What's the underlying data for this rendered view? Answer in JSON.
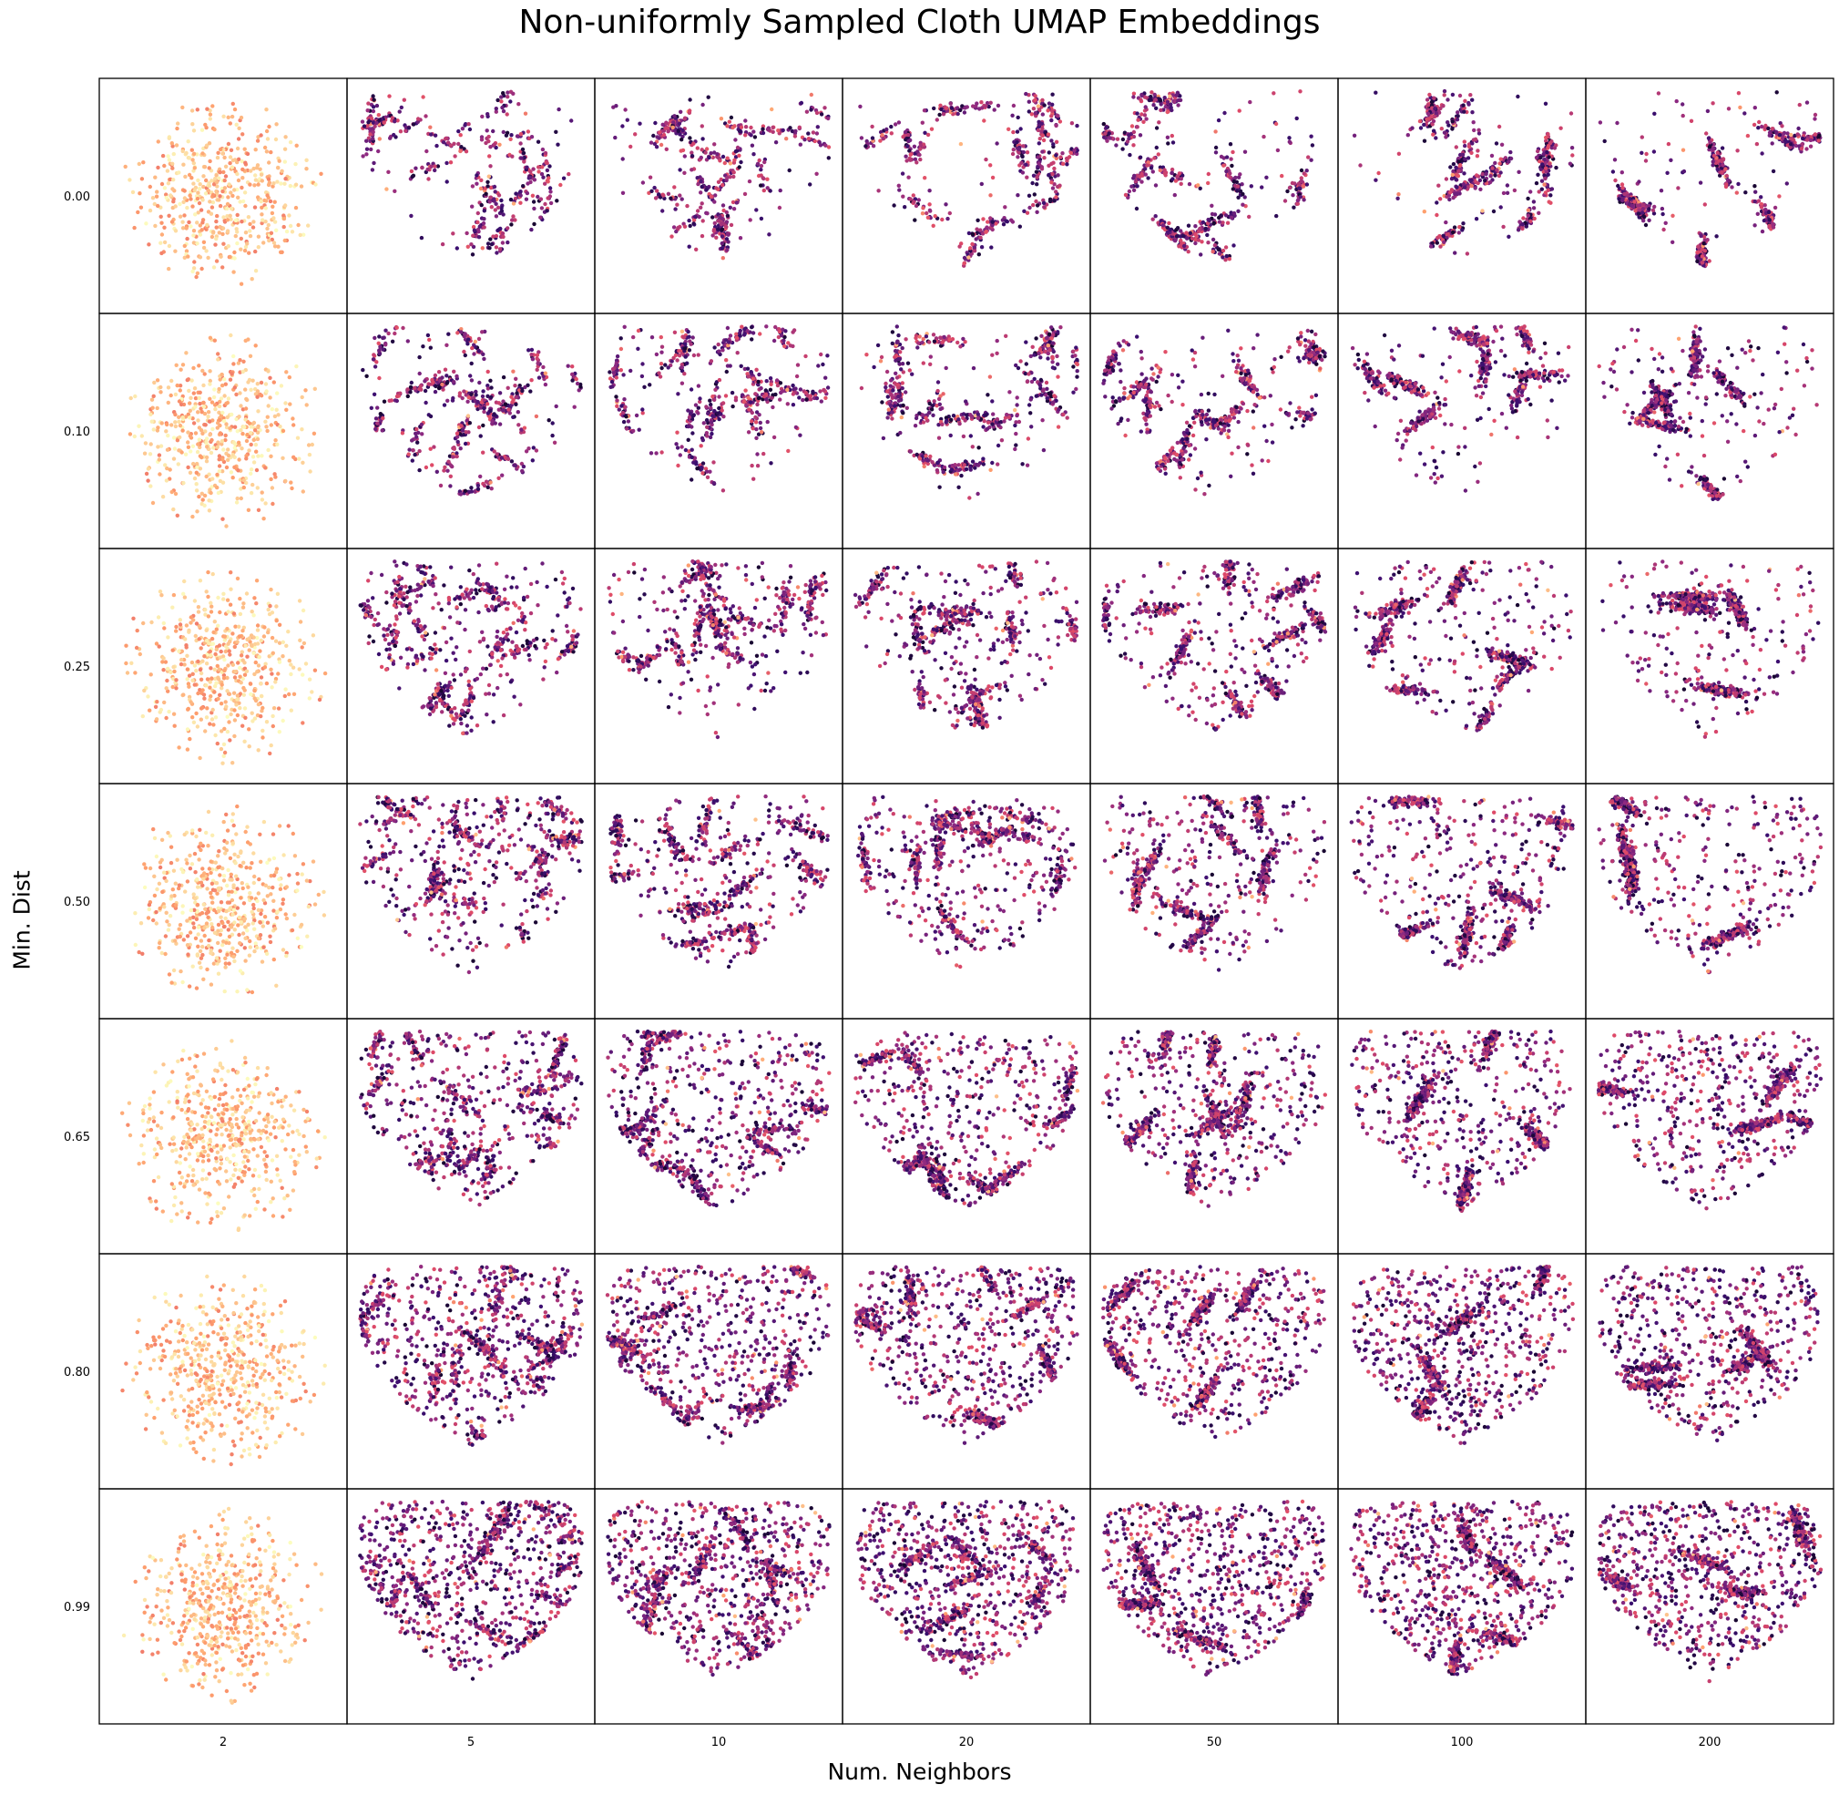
{
  "chart_data": {
    "type": "scatter",
    "title": "Non-uniformly Sampled Cloth UMAP Embeddings",
    "xlabel": "Num. Neighbors",
    "ylabel": "Min. Dist",
    "layout": "grid 7 rows x 7 columns",
    "columns_n_neighbors": [
      "2",
      "5",
      "10",
      "20",
      "50",
      "100",
      "200"
    ],
    "rows_min_dist": [
      "0.00",
      "0.10",
      "0.25",
      "0.50",
      "0.65",
      "0.80",
      "0.99"
    ],
    "colormap": "magma",
    "colors": [
      "#000004",
      "#3b0f70",
      "#8c2981",
      "#de4968",
      "#fe9f6d",
      "#fcfdbf"
    ],
    "axes_ticks_in_panels": false,
    "grid": false,
    "legend": "none"
  }
}
